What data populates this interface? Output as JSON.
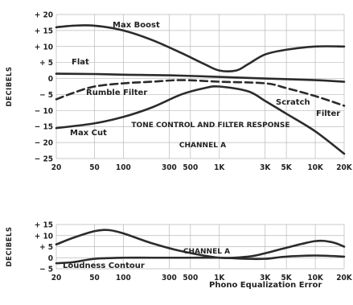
{
  "chart_data": [
    {
      "type": "line",
      "title": "TONE CONTROL AND FILTER RESPONSE",
      "subtitle": "CHANNEL A",
      "ylabel": "DECIBELS",
      "xlabel": "",
      "x_scale": "log",
      "xlim": [
        20,
        20000
      ],
      "ylim": [
        -25,
        20
      ],
      "grid": true,
      "x_ticks": [
        {
          "value": 20,
          "label": "20"
        },
        {
          "value": 50,
          "label": "50"
        },
        {
          "value": 100,
          "label": "100"
        },
        {
          "value": 300,
          "label": "300"
        },
        {
          "value": 500,
          "label": "500"
        },
        {
          "value": 1000,
          "label": "1K"
        },
        {
          "value": 3000,
          "label": "3K"
        },
        {
          "value": 5000,
          "label": "5K"
        },
        {
          "value": 10000,
          "label": "10K"
        },
        {
          "value": 20000,
          "label": "20K"
        }
      ],
      "y_ticks": [
        {
          "value": 20,
          "label": "+ 20"
        },
        {
          "value": 15,
          "label": "+ 15"
        },
        {
          "value": 10,
          "label": "+ 10"
        },
        {
          "value": 5,
          "label": "+ 5"
        },
        {
          "value": 0,
          "label": "0"
        },
        {
          "value": -5,
          "label": "− 5"
        },
        {
          "value": -10,
          "label": "− 10"
        },
        {
          "value": -15,
          "label": "− 15"
        },
        {
          "value": -20,
          "label": "− 20"
        },
        {
          "value": -25,
          "label": "− 25"
        }
      ],
      "series": [
        {
          "name": "Max Boost",
          "style": "solid",
          "x": [
            20,
            30,
            50,
            100,
            200,
            400,
            700,
            1000,
            1500,
            2000,
            3000,
            5000,
            10000,
            20000
          ],
          "y": [
            16,
            16.5,
            16.5,
            15,
            12,
            8,
            4.5,
            2.5,
            2.5,
            4.5,
            7.5,
            9,
            10,
            10
          ]
        },
        {
          "name": "Flat",
          "style": "solid",
          "x": [
            20,
            50,
            100,
            300,
            1000,
            3000,
            10000,
            20000
          ],
          "y": [
            1.5,
            1.4,
            1.2,
            1,
            0.5,
            0,
            -0.5,
            -1
          ]
        },
        {
          "name": "Rumble Filter",
          "style": "dashed",
          "x": [
            20,
            30,
            50,
            100,
            200,
            400,
            1000,
            3000,
            5000,
            10000,
            20000
          ],
          "y": [
            -6.5,
            -4.5,
            -2.5,
            -1.5,
            -1,
            -0.5,
            -1,
            -1.5,
            -3,
            -5.5,
            -8.5
          ]
        },
        {
          "name": "Max Cut",
          "style": "solid",
          "x": [
            20,
            50,
            100,
            200,
            400,
            700,
            1000,
            2000,
            3000,
            5000,
            10000,
            20000
          ],
          "y": [
            -15.5,
            -14,
            -12,
            -9,
            -5,
            -3,
            -2.5,
            -4,
            -7,
            -11,
            -16.5,
            -23.5
          ]
        }
      ],
      "annotations": [
        {
          "text": "Max Boost",
          "series": "Max Boost"
        },
        {
          "text": "Flat",
          "series": "Flat"
        },
        {
          "text": "Rumble Filter",
          "series": "Rumble Filter"
        },
        {
          "text": "Scratch",
          "series": "Scratch Filter"
        },
        {
          "text": "Filter",
          "series": "Scratch Filter"
        },
        {
          "text": "Max Cut",
          "series": "Max Cut"
        }
      ]
    },
    {
      "type": "line",
      "title": "CHANNEL A",
      "ylabel": "DECIBELS",
      "xlabel": "",
      "x_scale": "log",
      "xlim": [
        20,
        20000
      ],
      "ylim": [
        -5,
        15
      ],
      "grid": true,
      "x_ticks": [
        {
          "value": 20,
          "label": "20"
        },
        {
          "value": 50,
          "label": "50"
        },
        {
          "value": 100,
          "label": "100"
        },
        {
          "value": 300,
          "label": "300"
        },
        {
          "value": 500,
          "label": "500"
        },
        {
          "value": 1000,
          "label": "1K"
        },
        {
          "value": 3000,
          "label": "3K"
        },
        {
          "value": 5000,
          "label": "5K"
        },
        {
          "value": 10000,
          "label": "10K"
        },
        {
          "value": 20000,
          "label": "20K"
        }
      ],
      "y_ticks": [
        {
          "value": 15,
          "label": "+ 15"
        },
        {
          "value": 10,
          "label": "+ 10"
        },
        {
          "value": 5,
          "label": "+ 5"
        },
        {
          "value": 0,
          "label": "0"
        },
        {
          "value": -5,
          "label": "− 5"
        }
      ],
      "series": [
        {
          "name": "Loudness Contour",
          "style": "solid",
          "x": [
            20,
            30,
            50,
            70,
            100,
            200,
            400,
            1000,
            2000,
            3000,
            5000,
            10000,
            15000,
            20000
          ],
          "y": [
            6,
            9,
            12,
            12.5,
            11,
            6.5,
            3,
            0,
            0.5,
            2,
            4.5,
            7.5,
            7,
            5
          ]
        },
        {
          "name": "Phono Equalization Error",
          "style": "solid",
          "x": [
            20,
            30,
            50,
            100,
            200,
            500,
            1000,
            2000,
            3000,
            5000,
            10000,
            20000
          ],
          "y": [
            -2.5,
            -2,
            -0.5,
            0,
            0,
            0,
            0,
            -0.5,
            -0.5,
            0.5,
            1,
            0.5
          ]
        }
      ],
      "annotations": [
        {
          "text": "Loudness Contour",
          "series": "Loudness Contour"
        },
        {
          "text": "Phono Equalization Error",
          "series": "Phono Equalization Error"
        }
      ]
    }
  ]
}
